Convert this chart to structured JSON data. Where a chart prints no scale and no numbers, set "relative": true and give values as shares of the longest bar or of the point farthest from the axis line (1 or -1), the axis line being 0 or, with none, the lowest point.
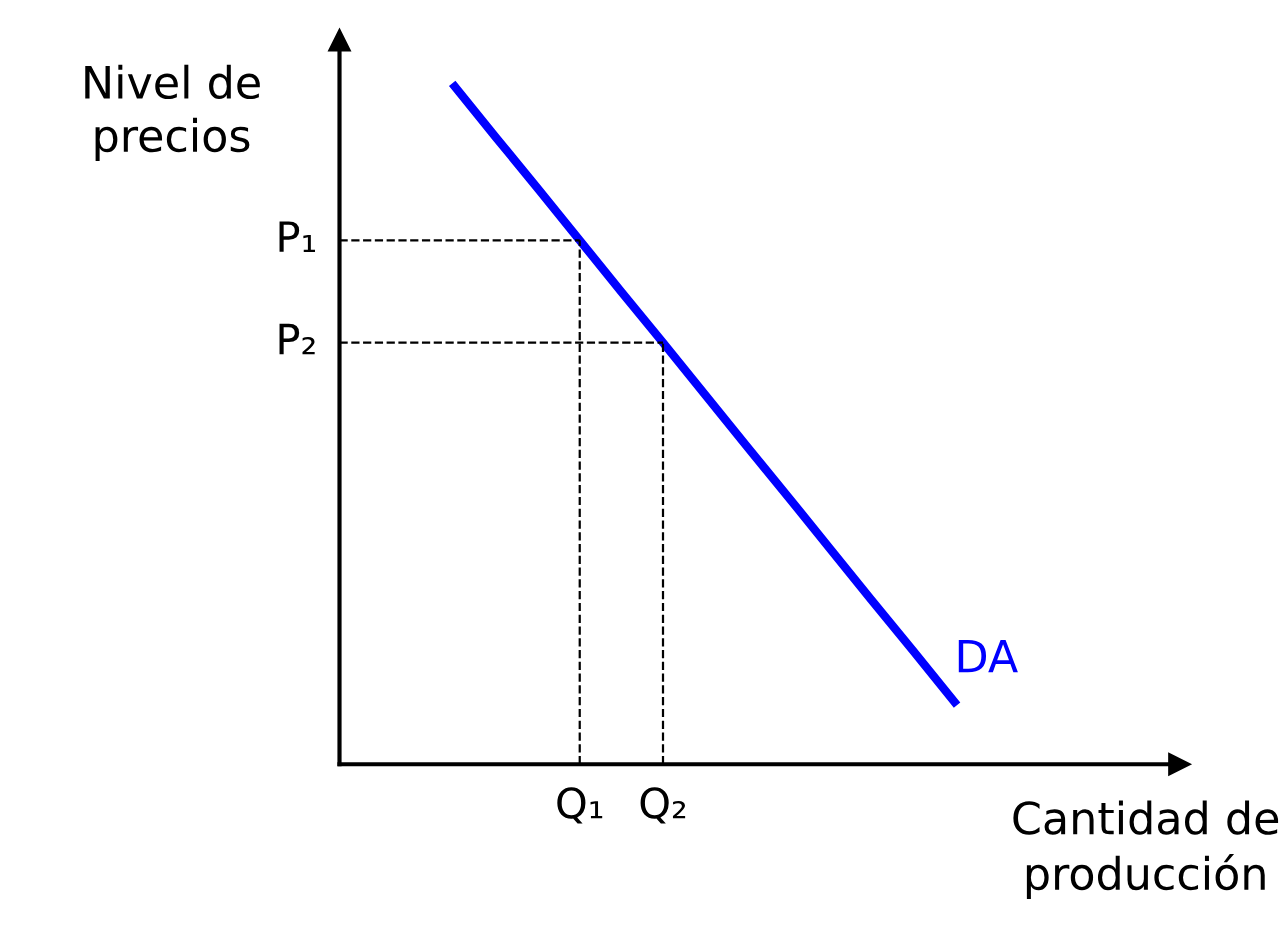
{
  "chart_data": {
    "type": "line",
    "xlabel": "Cantidad de\nproducción",
    "ylabel": "Nivel de\nprecios",
    "relative": true,
    "categories": [
      null,
      null,
      null,
      "Q₁",
      null,
      "Q₂",
      null,
      null,
      null,
      null,
      null,
      null,
      null
    ],
    "series": [
      {
        "name": "DA",
        "color": "#0000ff",
        "values": [
          1,
          0.924,
          0.849,
          0.773,
          0.697,
          0.622,
          0.546,
          0.47,
          0.395,
          0.319,
          0.243,
          0.168,
          0.092
        ]
      }
    ],
    "ref_lines": [
      {
        "axis": "y",
        "value": 0.773,
        "label": "P₁",
        "color": "#000000",
        "line_style": "dashed"
      },
      {
        "axis": "y",
        "value": 0.622,
        "label": "P₂",
        "color": "#000000",
        "line_style": "dashed"
      }
    ],
    "legend": false,
    "marker": "none",
    "line_style": "solid"
  }
}
